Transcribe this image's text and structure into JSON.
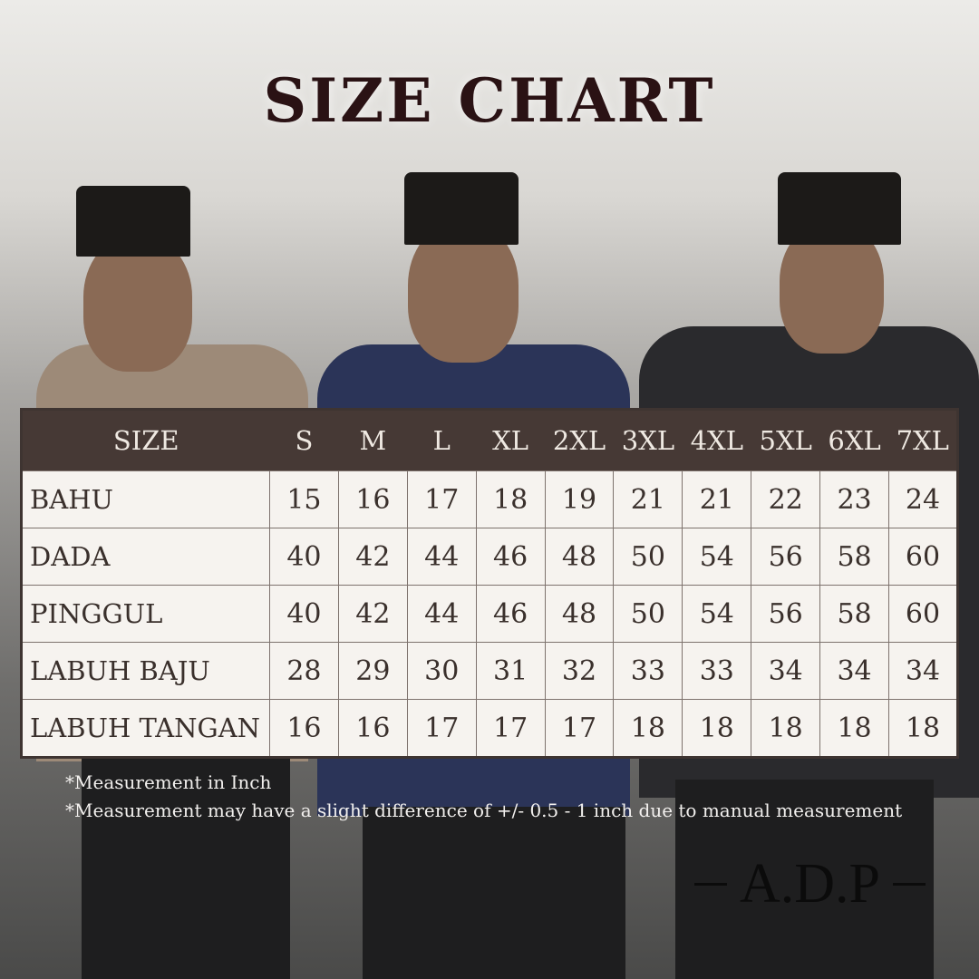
{
  "title": "SIZE CHART",
  "table": {
    "headers": [
      "SIZE",
      "S",
      "M",
      "L",
      "XL",
      "2XL",
      "3XL",
      "4XL",
      "5XL",
      "6XL",
      "7XL"
    ],
    "rows": [
      {
        "label": "BAHU",
        "values": [
          "15",
          "16",
          "17",
          "18",
          "19",
          "21",
          "21",
          "22",
          "23",
          "24"
        ]
      },
      {
        "label": "DADA",
        "values": [
          "40",
          "42",
          "44",
          "46",
          "48",
          "50",
          "54",
          "56",
          "58",
          "60"
        ]
      },
      {
        "label": "PINGGUL",
        "values": [
          "40",
          "42",
          "44",
          "46",
          "48",
          "50",
          "54",
          "56",
          "58",
          "60"
        ]
      },
      {
        "label": "LABUH BAJU",
        "values": [
          "28",
          "29",
          "30",
          "31",
          "32",
          "33",
          "33",
          "34",
          "34",
          "34"
        ]
      },
      {
        "label": "LABUH TANGAN",
        "values": [
          "16",
          "16",
          "17",
          "17",
          "17",
          "18",
          "18",
          "18",
          "18",
          "18"
        ]
      }
    ]
  },
  "notes": [
    "*Measurement in Inch",
    "*Measurement may have a slight difference of +/- 0.5 - 1 inch due to manual measurement"
  ],
  "logo": "A.D.P",
  "colors": {
    "title": "#2a1214",
    "header_bg": "#463935",
    "cell_bg": "#f6f3ef"
  }
}
